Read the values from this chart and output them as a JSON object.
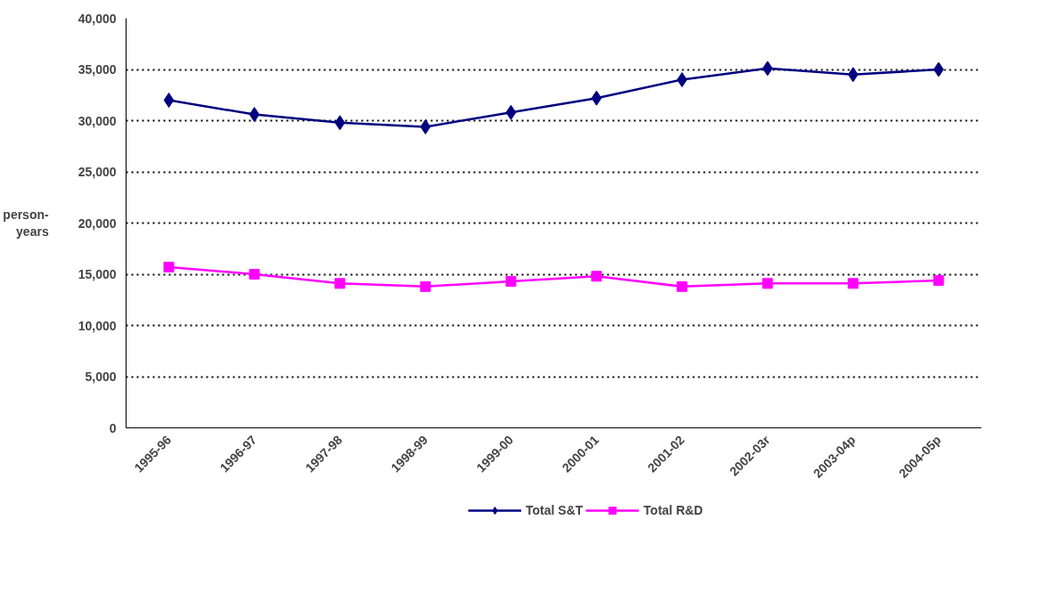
{
  "chart_data": {
    "type": "line",
    "ylabel": "person-\nyears",
    "categories": [
      "1995-96",
      "1996-97",
      "1997-98",
      "1998-99",
      "1999-00",
      "2000-01",
      "2001-02",
      "2002-03r",
      "2003-04p",
      "2004-05p"
    ],
    "series": [
      {
        "name": "Total S&T",
        "color": "#000080",
        "marker": "diamond",
        "values": [
          32000,
          30600,
          29800,
          29400,
          30800,
          32200,
          34000,
          35100,
          34500,
          35000
        ]
      },
      {
        "name": "Total R&D",
        "color": "#ff00ff",
        "marker": "square",
        "values": [
          15700,
          15000,
          14100,
          13800,
          14300,
          14800,
          13800,
          14100,
          14100,
          14400
        ]
      }
    ],
    "ylim": [
      0,
      40000
    ],
    "yticks": [
      {
        "value": 0,
        "label": "0"
      },
      {
        "value": 5000,
        "label": "5,000"
      },
      {
        "value": 10000,
        "label": "10,000"
      },
      {
        "value": 15000,
        "label": "15,000"
      },
      {
        "value": 20000,
        "label": "20,000"
      },
      {
        "value": 25000,
        "label": "25,000"
      },
      {
        "value": 30000,
        "label": "30,000"
      },
      {
        "value": 35000,
        "label": "35,000"
      },
      {
        "value": 40000,
        "label": "40,000"
      }
    ],
    "grid": "y",
    "legend": "bottom",
    "line_style": "solid"
  }
}
